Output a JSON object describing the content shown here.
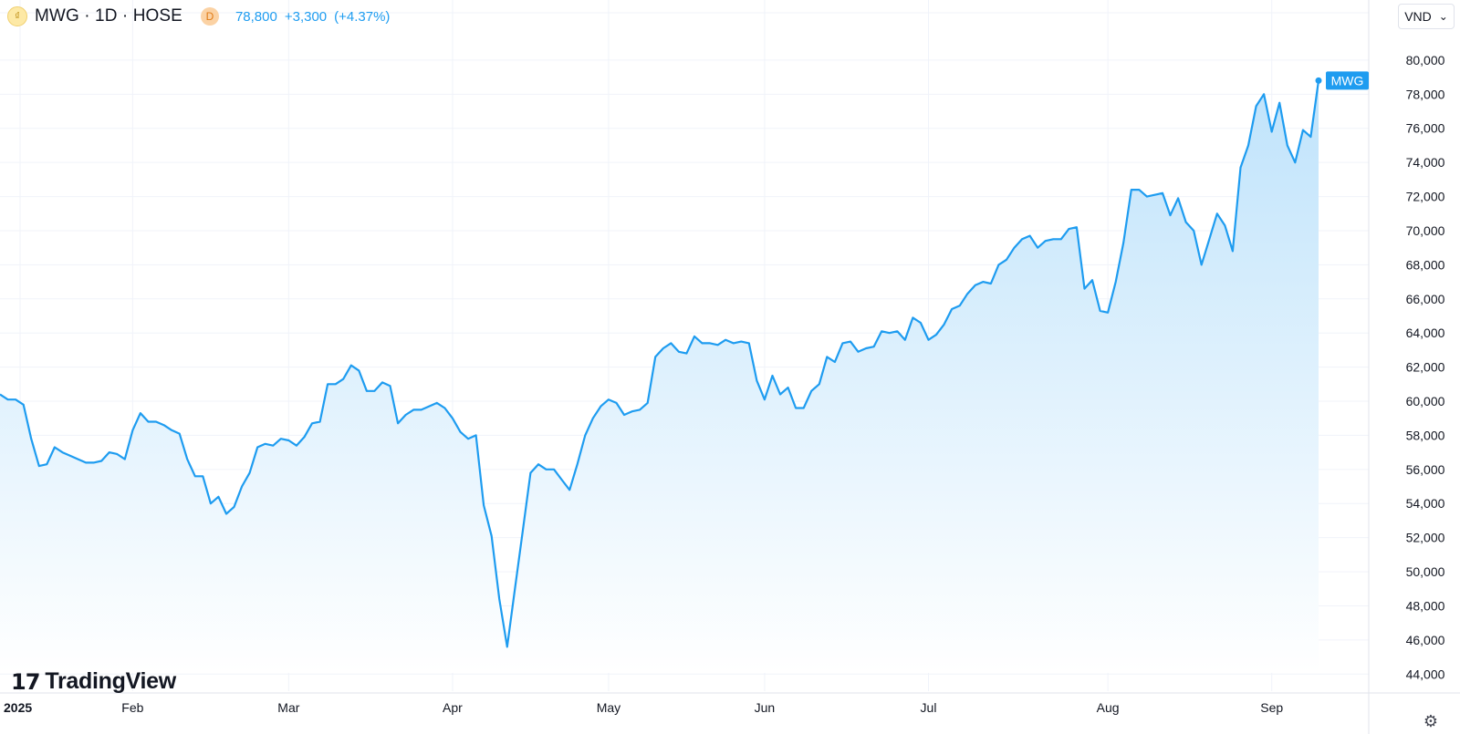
{
  "header": {
    "symbol_title": "MWG · 1D · HOSE",
    "delay_badge": "D",
    "last_price": "78,800",
    "change": "+3,300",
    "change_pct": "(+4.37%)",
    "logo_glyph": "₫"
  },
  "currency_selector": {
    "value": "VND",
    "arrow": "⌄"
  },
  "watermark": {
    "logo_glyph": "17",
    "text": "TradingView"
  },
  "settings_icon": "⚙",
  "colors": {
    "line": "#1e9cf0",
    "fill_top": "#bfe3fb",
    "fill_bottom": "#ffffff",
    "grid": "#f0f3fa",
    "label_bg": "#1e9cf0"
  },
  "chart_data": {
    "type": "area",
    "series": [
      {
        "name": "MWG",
        "x": [
          "2025-01-02",
          "2025-01-03",
          "2025-01-06",
          "2025-01-07",
          "2025-01-08",
          "2025-01-09",
          "2025-01-10",
          "2025-01-13",
          "2025-01-14",
          "2025-01-15",
          "2025-01-16",
          "2025-01-17",
          "2025-01-20",
          "2025-01-21",
          "2025-01-22",
          "2025-01-23",
          "2025-01-24",
          "2025-02-03",
          "2025-02-04",
          "2025-02-05",
          "2025-02-06",
          "2025-02-07",
          "2025-02-10",
          "2025-02-11",
          "2025-02-12",
          "2025-02-13",
          "2025-02-14",
          "2025-02-17",
          "2025-02-18",
          "2025-02-19",
          "2025-02-20",
          "2025-02-21",
          "2025-02-24",
          "2025-02-25",
          "2025-02-26",
          "2025-02-27",
          "2025-02-28",
          "2025-03-03",
          "2025-03-04",
          "2025-03-05",
          "2025-03-06",
          "2025-03-07",
          "2025-03-10",
          "2025-03-11",
          "2025-03-12",
          "2025-03-13",
          "2025-03-14",
          "2025-03-17",
          "2025-03-18",
          "2025-03-19",
          "2025-03-20",
          "2025-03-21",
          "2025-03-24",
          "2025-03-25",
          "2025-03-26",
          "2025-03-27",
          "2025-03-28",
          "2025-03-31",
          "2025-04-01",
          "2025-04-02",
          "2025-04-03",
          "2025-04-04",
          "2025-04-08",
          "2025-04-09",
          "2025-04-10",
          "2025-04-11",
          "2025-04-14",
          "2025-04-15",
          "2025-04-16",
          "2025-04-17",
          "2025-04-18",
          "2025-04-21",
          "2025-04-22",
          "2025-04-23",
          "2025-04-24",
          "2025-04-25",
          "2025-04-28",
          "2025-04-29",
          "2025-05-05",
          "2025-05-06",
          "2025-05-07",
          "2025-05-08",
          "2025-05-09",
          "2025-05-12",
          "2025-05-13",
          "2025-05-14",
          "2025-05-15",
          "2025-05-16",
          "2025-05-19",
          "2025-05-20",
          "2025-05-21",
          "2025-05-22",
          "2025-05-23",
          "2025-05-26",
          "2025-05-27",
          "2025-05-28",
          "2025-05-29",
          "2025-05-30",
          "2025-06-02",
          "2025-06-03",
          "2025-06-04",
          "2025-06-05",
          "2025-06-06",
          "2025-06-09",
          "2025-06-10",
          "2025-06-11",
          "2025-06-12",
          "2025-06-13",
          "2025-06-16",
          "2025-06-17",
          "2025-06-18",
          "2025-06-19",
          "2025-06-20",
          "2025-06-23",
          "2025-06-24",
          "2025-06-25",
          "2025-06-26",
          "2025-06-27",
          "2025-06-30",
          "2025-07-01",
          "2025-07-02",
          "2025-07-03",
          "2025-07-04",
          "2025-07-07",
          "2025-07-08",
          "2025-07-09",
          "2025-07-10",
          "2025-07-11",
          "2025-07-14",
          "2025-07-15",
          "2025-07-16",
          "2025-07-17",
          "2025-07-18",
          "2025-07-21",
          "2025-07-22",
          "2025-07-23",
          "2025-07-24",
          "2025-07-25",
          "2025-07-28",
          "2025-07-29",
          "2025-07-30",
          "2025-07-31",
          "2025-08-01",
          "2025-08-04",
          "2025-08-05",
          "2025-08-06",
          "2025-08-07",
          "2025-08-08",
          "2025-08-11",
          "2025-08-12",
          "2025-08-13",
          "2025-08-14",
          "2025-08-15",
          "2025-08-18",
          "2025-08-19",
          "2025-08-20",
          "2025-08-21",
          "2025-08-22",
          "2025-08-25",
          "2025-08-26",
          "2025-08-27",
          "2025-08-28",
          "2025-08-29",
          "2025-09-03",
          "2025-09-04",
          "2025-09-05",
          "2025-09-08",
          "2025-09-09",
          "2025-09-10",
          "2025-09-11"
        ],
        "values": [
          60400,
          60100,
          60100,
          59800,
          57800,
          56200,
          56300,
          57300,
          57000,
          56800,
          56600,
          56400,
          56400,
          56500,
          57000,
          56900,
          56600,
          58300,
          59300,
          58800,
          58800,
          58600,
          58300,
          58100,
          56600,
          55600,
          55600,
          54000,
          54400,
          53400,
          53800,
          55000,
          55800,
          57300,
          57500,
          57400,
          57800,
          57700,
          57400,
          57900,
          58700,
          58800,
          61000,
          61000,
          61300,
          62100,
          61800,
          60600,
          60600,
          61100,
          60900,
          58700,
          59200,
          59500,
          59500,
          59700,
          59900,
          59600,
          59000,
          58200,
          57800,
          58000,
          53900,
          52100,
          48400,
          45600,
          49000,
          52400,
          55800,
          56300,
          56000,
          56000,
          55400,
          54800,
          56300,
          58000,
          59000,
          59700,
          60100,
          59900,
          59200,
          59400,
          59500,
          59900,
          62600,
          63100,
          63400,
          62900,
          62800,
          63800,
          63400,
          63400,
          63300,
          63600,
          63400,
          63500,
          63400,
          61200,
          60100,
          61500,
          60400,
          60800,
          59600,
          59600,
          60600,
          61000,
          62600,
          62300,
          63400,
          63500,
          62900,
          63100,
          63200,
          64100,
          64000,
          64100,
          63600,
          64900,
          64600,
          63600,
          63900,
          64500,
          65400,
          65600,
          66300,
          66800,
          67000,
          66900,
          68000,
          68300,
          69000,
          69500,
          69700,
          69000,
          69400,
          69500,
          69500,
          70100,
          70200,
          66600,
          67100,
          65300,
          65200,
          67000,
          69300,
          72400,
          72400,
          72000,
          72100,
          72200,
          70900,
          71900,
          70500,
          70000,
          68000,
          69500,
          71000,
          70300,
          68800,
          73700,
          75000,
          77300,
          78000,
          75800,
          77500,
          75000,
          74000,
          75900,
          75500,
          78800
        ]
      }
    ],
    "x_ticks": [
      "2025",
      "Feb",
      "Mar",
      "Apr",
      "May",
      "Jun",
      "Jul",
      "Aug",
      "Sep"
    ],
    "y_ticks": [
      "44,000",
      "46,000",
      "48,000",
      "50,000",
      "52,000",
      "54,000",
      "56,000",
      "58,000",
      "60,000",
      "62,000",
      "64,000",
      "66,000",
      "68,000",
      "70,000",
      "72,000",
      "74,000",
      "76,000",
      "78,000",
      "80,000"
    ],
    "ylim": [
      43000,
      81600
    ],
    "last_value_label": "MWG",
    "grid": true,
    "title": "",
    "xlabel": "",
    "ylabel": ""
  }
}
